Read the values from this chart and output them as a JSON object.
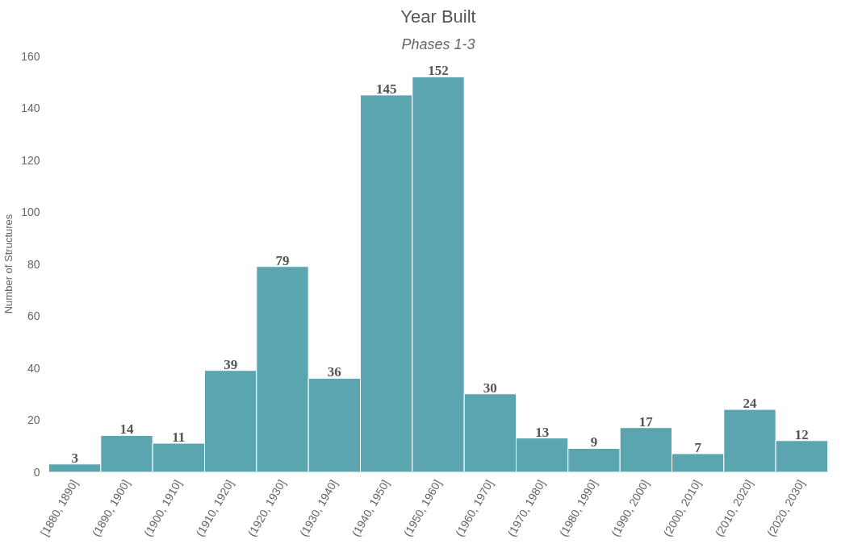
{
  "chart_data": {
    "type": "bar",
    "title": "Year Built",
    "subtitle": "Phases 1-3",
    "ylabel": "Number of Structures",
    "categories": [
      "[1880, 1890]",
      "(1890, 1900]",
      "(1900, 1910]",
      "(1910, 1920]",
      "(1920, 1930]",
      "(1930, 1940]",
      "(1940, 1950]",
      "(1950, 1960]",
      "(1960, 1970]",
      "(1970, 1980]",
      "(1980, 1990]",
      "(1990, 2000]",
      "(2000, 2010]",
      "(2010, 2020]",
      "(2020, 2030]"
    ],
    "values": [
      3,
      14,
      11,
      39,
      79,
      36,
      145,
      152,
      30,
      13,
      9,
      17,
      7,
      24,
      12
    ],
    "color": "#5aa5b0",
    "ylim": [
      0,
      160
    ],
    "yticks": [
      0,
      20,
      40,
      60,
      80,
      100,
      120,
      140,
      160
    ],
    "grid": false,
    "data_labels": true
  }
}
